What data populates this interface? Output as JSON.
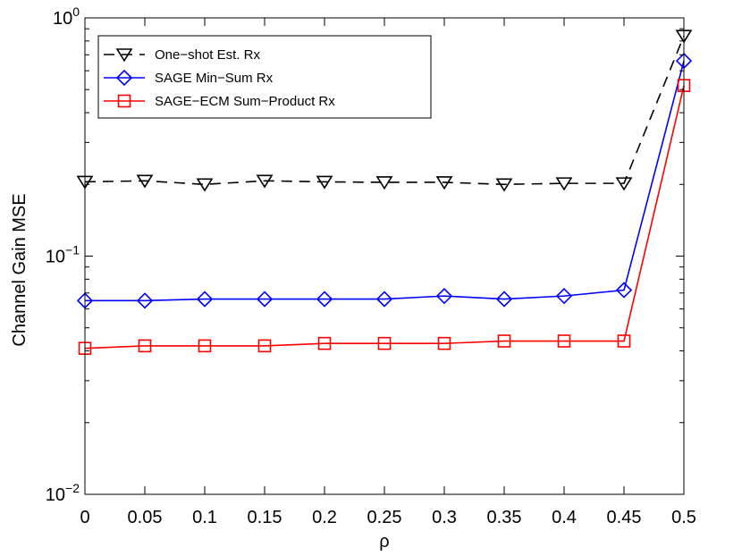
{
  "chart_data": {
    "type": "line",
    "title": "",
    "xlabel": "ρ",
    "ylabel": "Channel Gain MSE",
    "x": [
      0,
      0.05,
      0.1,
      0.15,
      0.2,
      0.25,
      0.3,
      0.35,
      0.4,
      0.45,
      0.5
    ],
    "x_tick_labels": [
      "0",
      "0.05",
      "0.1",
      "0.15",
      "0.2",
      "0.25",
      "0.3",
      "0.35",
      "0.4",
      "0.45",
      "0.5"
    ],
    "xlim": [
      0,
      0.5
    ],
    "ylim": [
      0.01,
      1
    ],
    "y_scale": "log",
    "y_ticks": [
      {
        "value": 1,
        "base": "10",
        "exp": "0"
      },
      {
        "value": 0.1,
        "base": "10",
        "exp": "−1"
      },
      {
        "value": 0.01,
        "base": "10",
        "exp": "−2"
      }
    ],
    "grid": false,
    "legend_position": "top-left",
    "series": [
      {
        "name": "One−shot Est. Rx",
        "color": "#000000",
        "dash": "dashed",
        "marker": "triangle-down",
        "values": [
          0.205,
          0.207,
          0.2,
          0.207,
          0.205,
          0.204,
          0.204,
          0.2,
          0.202,
          0.202,
          0.84
        ]
      },
      {
        "name": "SAGE Min−Sum Rx",
        "color": "#0000ff",
        "dash": "solid",
        "marker": "diamond",
        "values": [
          0.065,
          0.065,
          0.066,
          0.066,
          0.066,
          0.066,
          0.068,
          0.066,
          0.068,
          0.072,
          0.66
        ]
      },
      {
        "name": "SAGE−ECM Sum−Product Rx",
        "color": "#ff0000",
        "dash": "solid",
        "marker": "square",
        "values": [
          0.041,
          0.042,
          0.042,
          0.042,
          0.043,
          0.043,
          0.043,
          0.044,
          0.044,
          0.044,
          0.52
        ]
      }
    ]
  }
}
